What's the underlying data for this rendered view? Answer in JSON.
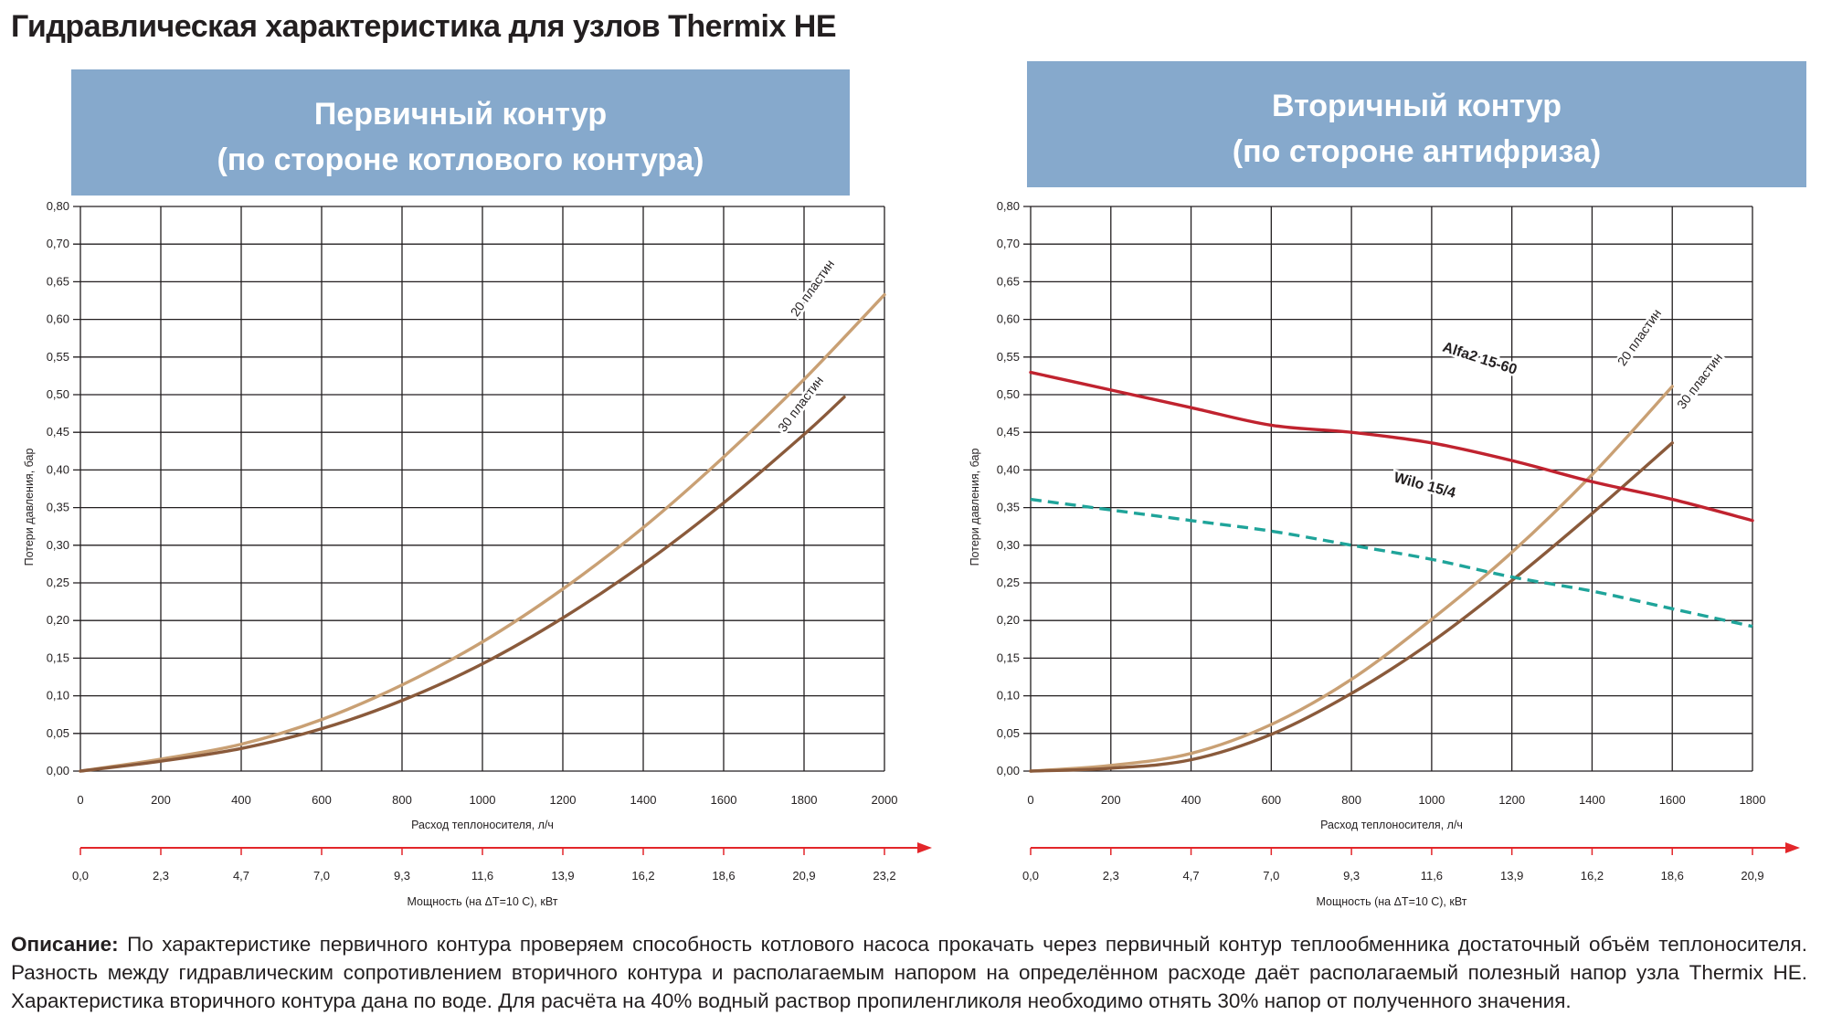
{
  "title": "Гидравлическая характеристика для узлов Thermix HE",
  "banner_left": {
    "line1": "Первичный контур",
    "line2": "(по стороне котлового контура)"
  },
  "banner_right": {
    "line1": "Вторичный контур",
    "line2": "(по стороне антифриза)"
  },
  "colors": {
    "banner": "#86a9cc",
    "series_20": "#c9a074",
    "series_30": "#8a5a3b",
    "alfa": "#c0232f",
    "wilo": "#1fa49a",
    "arrow": "#e3262a",
    "grid": "#231f20"
  },
  "description": {
    "label": "Описание:",
    "text": " По характеристике первичного контура проверяем способность котлового насоса прокачать через первичный контур теплообменника достаточный объём теплоносителя. Разность между гидравлическим сопротивлением вторичного контура и располагаемым напором на определённом расходе даёт располагаемый полезный напор узла Thermix HE. Характеристика вторичного контура дана по воде. Для расчёта на 40% водный раствор пропиленгликоля необходимо отнять 30% напор от полученного значения."
  },
  "chart_data": [
    {
      "type": "line",
      "xlabel": "Расход теплоносителя, л/ч",
      "ylabel": "Потери давления, бар",
      "x2label": "Мощность (на ΔT=10 C), кВт",
      "xlim": [
        0,
        2000
      ],
      "ylim": [
        0,
        0.8
      ],
      "x_ticks": [
        "0",
        "200",
        "400",
        "600",
        "800",
        "1000",
        "1200",
        "1400",
        "1600",
        "1800",
        "2000"
      ],
      "x2_ticks": [
        "0,0",
        "2,3",
        "4,7",
        "7,0",
        "9,3",
        "11,6",
        "13,9",
        "16,2",
        "18,6",
        "20,9",
        "23,2"
      ],
      "y_ticks": [
        "0,00",
        "0,05",
        "0,10",
        "0,15",
        "0,20",
        "0,25",
        "0,30",
        "0,35",
        "0,40",
        "0,45",
        "0,50",
        "0,55",
        "0,60",
        "0,65",
        "0,70",
        "0,80"
      ],
      "grid": true,
      "series": [
        {
          "name": "20 пластин",
          "style": "solid",
          "x": [
            0,
            200,
            400,
            600,
            800,
            1000,
            1200,
            1400,
            1600,
            1800,
            2000
          ],
          "y": [
            0,
            0.017,
            0.038,
            0.073,
            0.122,
            0.183,
            0.258,
            0.345,
            0.445,
            0.555,
            0.675
          ]
        },
        {
          "name": "30 пластин",
          "style": "solid",
          "x": [
            0,
            200,
            400,
            600,
            800,
            1000,
            1200,
            1400,
            1600,
            1800,
            1900
          ],
          "y": [
            0,
            0.014,
            0.032,
            0.06,
            0.1,
            0.152,
            0.217,
            0.293,
            0.38,
            0.477,
            0.53
          ]
        }
      ]
    },
    {
      "type": "line",
      "xlabel": "Расход теплоносителя, л/ч",
      "ylabel": "Потери давления, бар",
      "x2label": "Мощность (на ΔT=10 C), кВт",
      "xlim": [
        0,
        1800
      ],
      "ylim": [
        0,
        0.8
      ],
      "x_ticks": [
        "0",
        "200",
        "400",
        "600",
        "800",
        "1000",
        "1200",
        "1400",
        "1600",
        "1800"
      ],
      "x2_ticks": [
        "0,0",
        "2,3",
        "4,7",
        "7,0",
        "9,3",
        "11,6",
        "13,9",
        "16,2",
        "18,6",
        "20,9"
      ],
      "y_ticks": [
        "0,00",
        "0,05",
        "0,10",
        "0,15",
        "0,20",
        "0,25",
        "0,30",
        "0,35",
        "0,40",
        "0,45",
        "0,50",
        "0,55",
        "0,60",
        "0,65",
        "0,70",
        "0,80"
      ],
      "grid": true,
      "series": [
        {
          "name": "20 пластин",
          "style": "solid",
          "x": [
            0,
            200,
            400,
            600,
            800,
            1000,
            1200,
            1400,
            1600
          ],
          "y": [
            0,
            0.008,
            0.025,
            0.066,
            0.13,
            0.215,
            0.31,
            0.42,
            0.545
          ]
        },
        {
          "name": "30 пластин",
          "style": "solid",
          "x": [
            0,
            200,
            400,
            600,
            800,
            1000,
            1200,
            1400,
            1600
          ],
          "y": [
            0,
            0.004,
            0.016,
            0.052,
            0.11,
            0.183,
            0.27,
            0.365,
            0.465
          ]
        },
        {
          "name": "Alfa2 15-60",
          "style": "solid",
          "x": [
            0,
            200,
            400,
            600,
            800,
            1000,
            1200,
            1400,
            1600,
            1800
          ],
          "y": [
            0.565,
            0.54,
            0.515,
            0.49,
            0.48,
            0.465,
            0.44,
            0.41,
            0.385,
            0.355
          ]
        },
        {
          "name": "Wilo 15/4",
          "style": "dashed",
          "x": [
            0,
            200,
            400,
            600,
            800,
            1000,
            1200,
            1400,
            1600,
            1800
          ],
          "y": [
            0.385,
            0.37,
            0.355,
            0.34,
            0.32,
            0.3,
            0.275,
            0.255,
            0.23,
            0.205
          ]
        }
      ]
    }
  ]
}
